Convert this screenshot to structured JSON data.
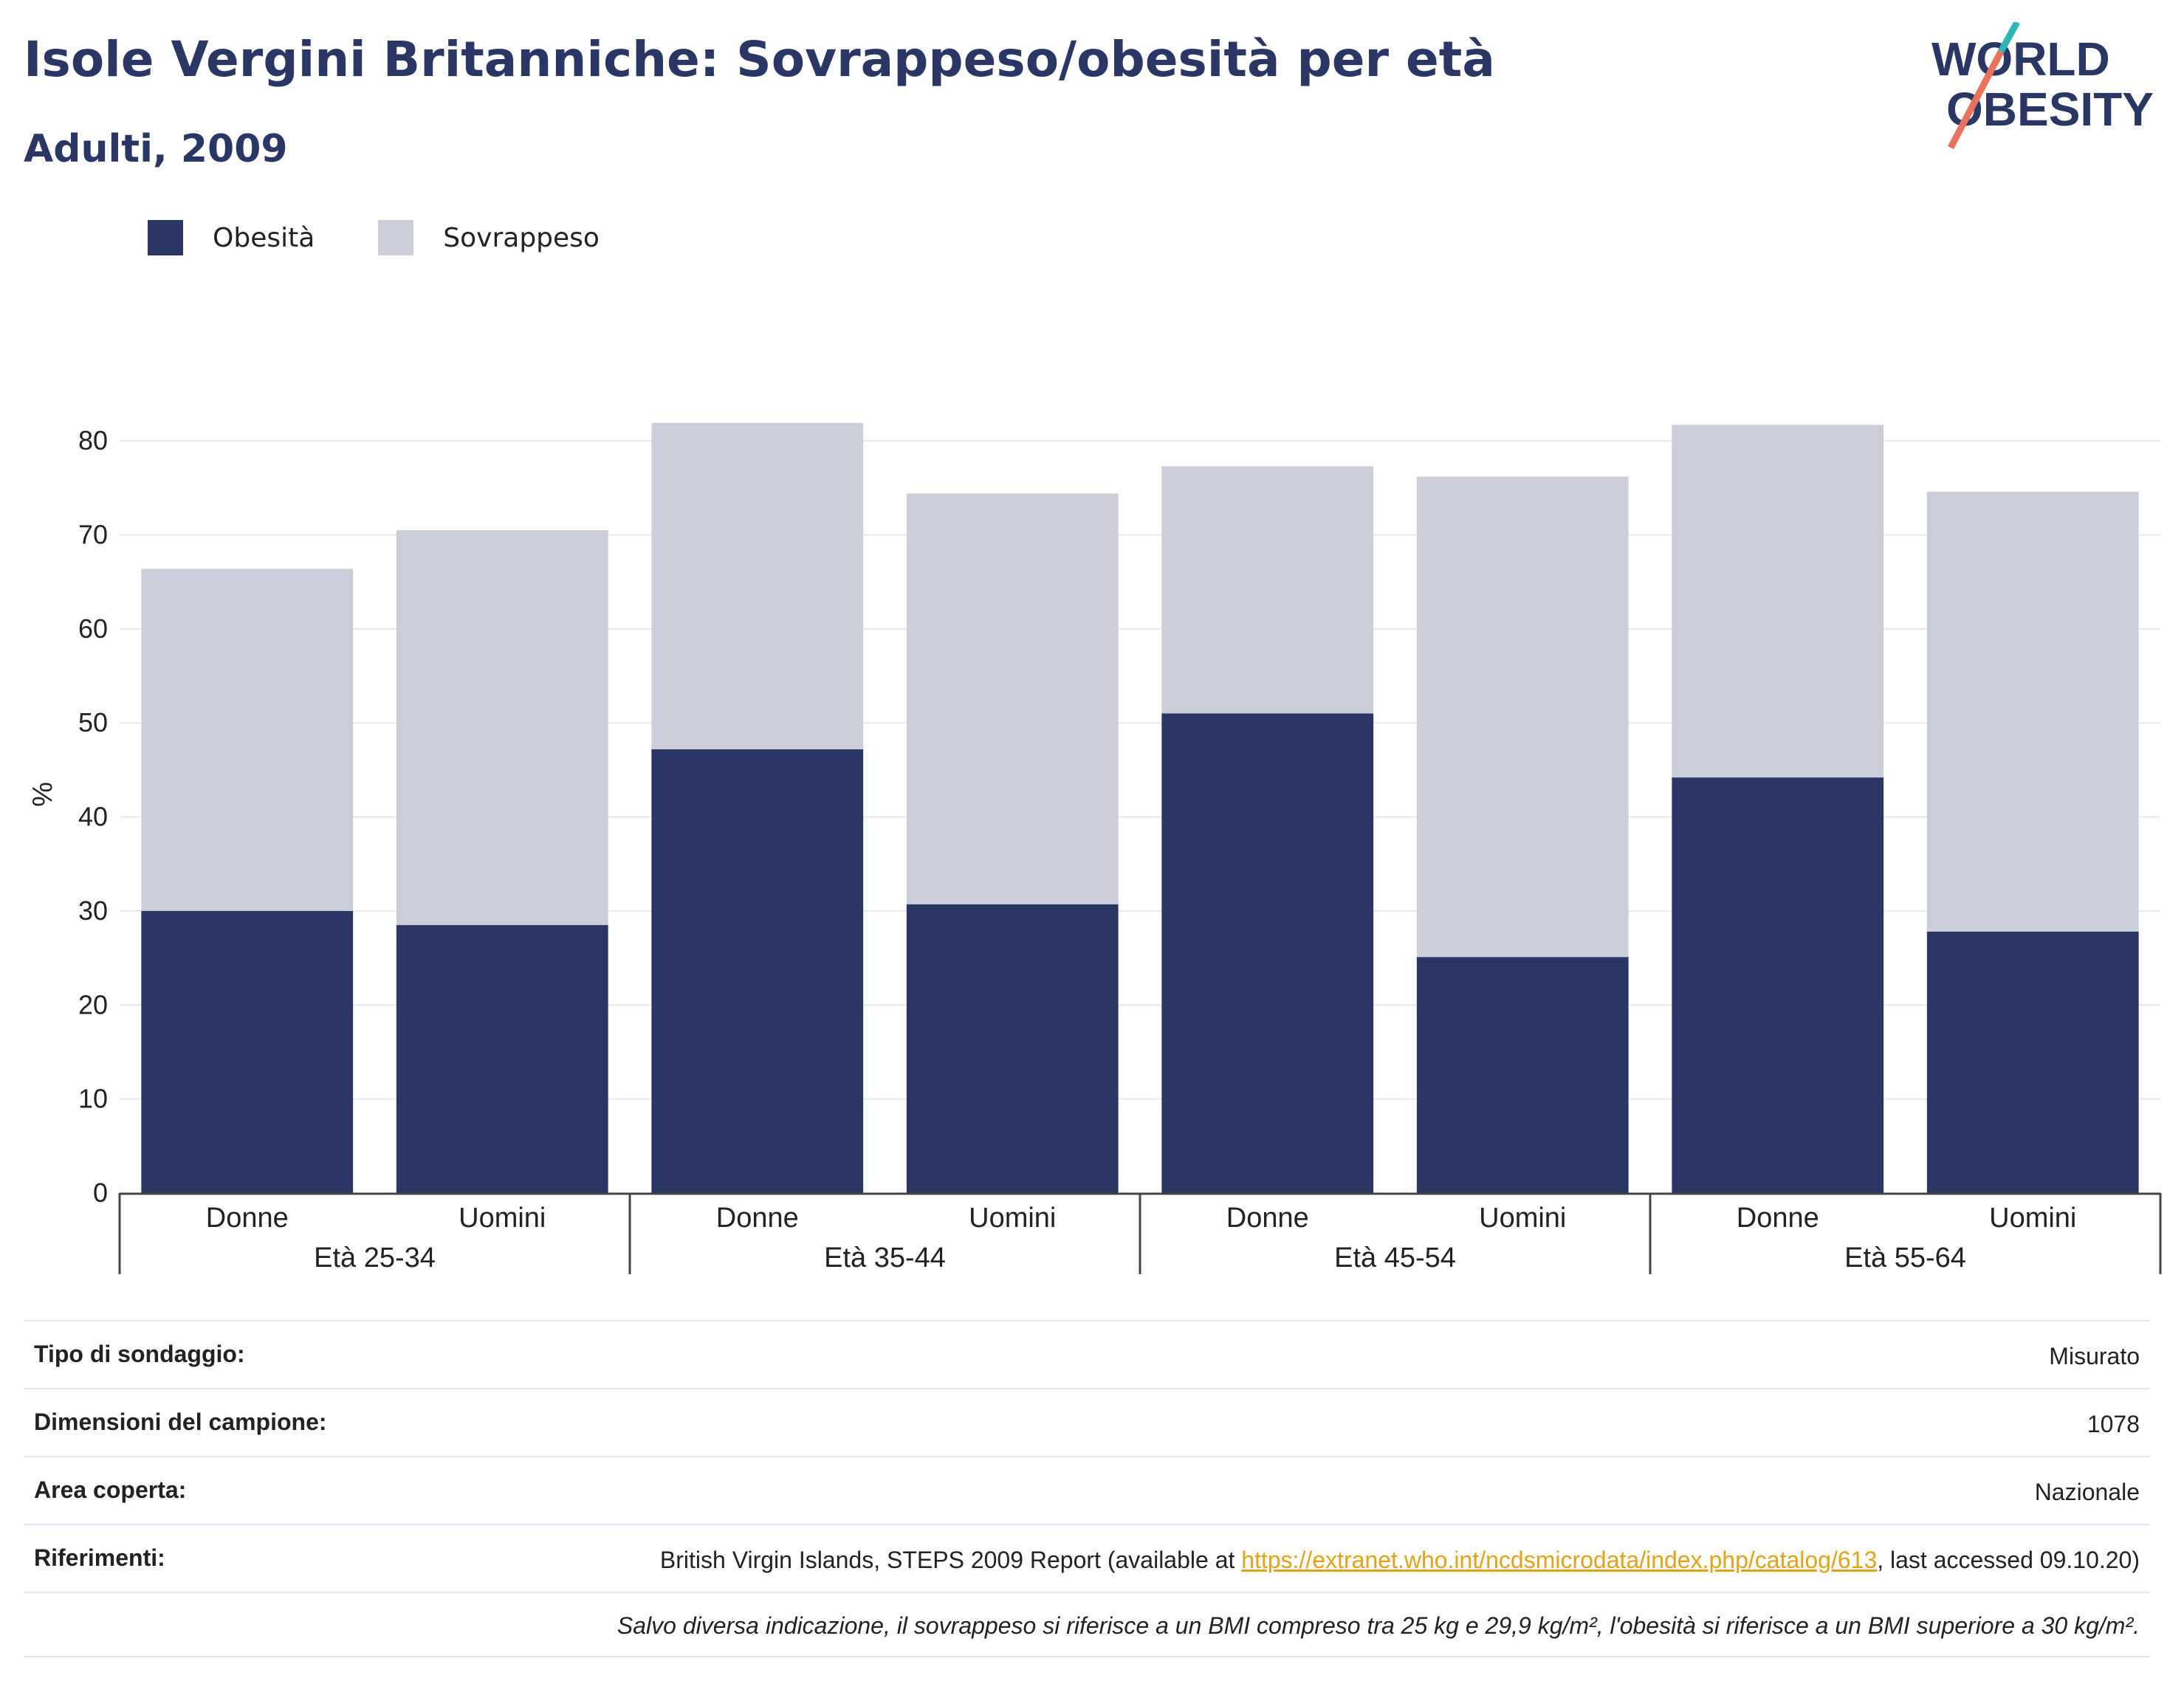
{
  "header": {
    "title": "Isole Vergini Britanniche: Sovrappeso/obesità per età",
    "subtitle": "Adulti, 2009"
  },
  "logo": {
    "line1": "WORLD",
    "line2": "OBESITY"
  },
  "colors": {
    "obesity": "#2a3764",
    "overweight": "#cbcdd9",
    "link": "#e3a21a",
    "logo_teal": "#2fb5b5",
    "logo_coral": "#e8725c"
  },
  "legend": [
    {
      "label": "Obesità",
      "color": "#2a3764"
    },
    {
      "label": "Sovrappeso",
      "color": "#cbcdd9"
    }
  ],
  "chart_data": {
    "type": "bar",
    "stacked": true,
    "ylabel": "%",
    "ylim": [
      0,
      85
    ],
    "yticks": [
      0,
      10,
      20,
      30,
      40,
      50,
      60,
      70,
      80
    ],
    "grid": true,
    "legend_position": "top-left",
    "groups": [
      "Età 25-34",
      "Età 35-44",
      "Età 45-54",
      "Età 55-64"
    ],
    "categories": [
      "Donne",
      "Uomini",
      "Donne",
      "Uomini",
      "Donne",
      "Uomini",
      "Donne",
      "Uomini"
    ],
    "series": [
      {
        "name": "Obesità",
        "values": [
          30.0,
          28.5,
          47.2,
          30.7,
          51.0,
          25.1,
          44.2,
          27.8
        ]
      },
      {
        "name": "Sovrappeso",
        "values": [
          36.4,
          42.0,
          34.7,
          43.7,
          26.3,
          51.1,
          37.5,
          46.8
        ]
      }
    ]
  },
  "info": {
    "rows": [
      {
        "label": "Tipo di sondaggio:",
        "value": "Misurato"
      },
      {
        "label": "Dimensioni del campione:",
        "value": "1078"
      },
      {
        "label": "Area coperta:",
        "value": "Nazionale"
      }
    ],
    "references": {
      "label": "Riferimenti:",
      "before": "British Virgin Islands, STEPS 2009 Report (available at ",
      "link": "https://extranet.who.int/ncdsmicrodata/index.php/catalog/613",
      "after": ", last accessed 09.10.20)"
    },
    "note": "Salvo diversa indicazione, il sovrappeso si riferisce a un BMI compreso tra 25 kg e 29,9 kg/m², l'obesità si riferisce a un BMI superiore a 30 kg/m²."
  }
}
